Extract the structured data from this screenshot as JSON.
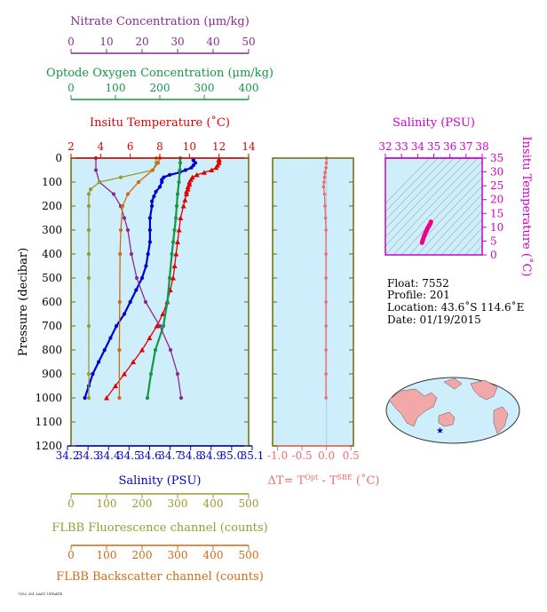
{
  "colors": {
    "nitrate": "#8b2a8b",
    "oxygen": "#119944",
    "temperature": "#e00000",
    "salinity": "#0000cc",
    "fluorescence": "#9a9a30",
    "backscatter": "#d06a10",
    "delta_t": "#f06a6a",
    "ts_axis": "#cc00cc",
    "ts_line": "#ee0088",
    "panel_bg": "#cdeefa",
    "axis_olive": "#6d6d00"
  },
  "top_axes": {
    "nitrate": {
      "label": "Nitrate Concentration (μm/kg)",
      "ticks": [
        "0",
        "10",
        "20",
        "30",
        "40",
        "50"
      ]
    },
    "oxygen": {
      "label": "Optode Oxygen Concentration (μm/kg)",
      "ticks": [
        "0",
        "100",
        "200",
        "300",
        "400"
      ]
    },
    "temperature": {
      "label": "Insitu Temperature (˚C)",
      "ticks": [
        "2",
        "4",
        "6",
        "8",
        "10",
        "12",
        "14"
      ]
    }
  },
  "bottom_axes": {
    "salinity": {
      "label": "Salinity (PSU)",
      "ticks": [
        "34.2",
        "34.3",
        "34.4",
        "34.5",
        "34.6",
        "34.7",
        "34.8",
        "34.9",
        "35.0",
        "35.1"
      ]
    },
    "fluorescence": {
      "label": "FLBB Fluorescence channel (counts)",
      "ticks": [
        "0",
        "100",
        "200",
        "300",
        "400",
        "500"
      ]
    },
    "backscatter": {
      "label": "FLBB Backscatter channel (counts)",
      "ticks": [
        "0",
        "100",
        "200",
        "300",
        "400",
        "500"
      ]
    }
  },
  "pressure_axis": {
    "label": "Pressure (decibar)",
    "ticks": [
      "0",
      "100",
      "200",
      "300",
      "400",
      "500",
      "600",
      "700",
      "800",
      "900",
      "1000",
      "1100",
      "1200"
    ]
  },
  "delta_t_axis": {
    "label_main": "ΔT= T",
    "label_sup1": "Opt",
    "label_mid": " - T",
    "label_sup2": "SBE",
    "label_end": " (˚C)",
    "ticks": [
      "-1.0",
      "-0.5",
      "0.0",
      "0.5"
    ]
  },
  "ts_diagram": {
    "title": "Salinity (PSU)",
    "ylabel": "Insitu Temperature (˚C)",
    "x_ticks": [
      "32",
      "33",
      "34",
      "35",
      "36",
      "37",
      "38"
    ],
    "y_ticks": [
      "0",
      "5",
      "10",
      "15",
      "20",
      "25",
      "30",
      "35"
    ]
  },
  "float_info": {
    "float": "Float:  7552",
    "profile": "Profile:  201",
    "location": "Location:  43.6˚S  114.6˚E",
    "date": "Date:  01/19/2015"
  },
  "footer_text": "7552 201 LAST UPDATE",
  "chart_data": [
    {
      "type": "line",
      "title": "",
      "ylabel": "Pressure (decibar)",
      "ylim": [
        1200,
        0
      ],
      "series": [
        {
          "name": "Insitu Temperature (˚C)",
          "xlim": [
            2,
            14
          ],
          "pressure": [
            5,
            10,
            20,
            30,
            40,
            50,
            60,
            70,
            80,
            90,
            100,
            110,
            120,
            130,
            140,
            150,
            175,
            200,
            250,
            300,
            350,
            400,
            450,
            500,
            550,
            600,
            650,
            700,
            750,
            800,
            850,
            900,
            950,
            1000
          ],
          "values": [
            12.0,
            12.0,
            12.0,
            11.9,
            11.8,
            11.5,
            11.0,
            10.5,
            10.2,
            10.1,
            10.0,
            10.0,
            9.9,
            9.9,
            9.8,
            9.8,
            9.7,
            9.6,
            9.4,
            9.3,
            9.2,
            9.1,
            9.0,
            8.9,
            8.7,
            8.5,
            8.2,
            7.8,
            7.3,
            6.8,
            6.2,
            5.6,
            5.0,
            4.4
          ]
        },
        {
          "name": "Salinity (PSU)",
          "xlim": [
            34.2,
            35.1
          ],
          "pressure": [
            5,
            10,
            20,
            30,
            40,
            50,
            60,
            70,
            80,
            90,
            100,
            120,
            140,
            160,
            180,
            200,
            250,
            300,
            350,
            400,
            450,
            500,
            550,
            600,
            650,
            700,
            750,
            800,
            850,
            900,
            950,
            1000
          ],
          "values": [
            34.82,
            34.82,
            34.83,
            34.82,
            34.81,
            34.78,
            34.75,
            34.7,
            34.67,
            34.66,
            34.66,
            34.65,
            34.63,
            34.62,
            34.61,
            34.61,
            34.6,
            34.6,
            34.6,
            34.59,
            34.58,
            34.56,
            34.53,
            34.5,
            34.47,
            34.43,
            34.4,
            34.37,
            34.34,
            34.31,
            34.29,
            34.27
          ]
        },
        {
          "name": "Optode Oxygen Concentration (μm/kg)",
          "xlim": [
            0,
            400
          ],
          "pressure": [
            0,
            20,
            50,
            100,
            150,
            200,
            250,
            300,
            350,
            400,
            500,
            600,
            700,
            800,
            900,
            1000
          ],
          "values": [
            246,
            246,
            245,
            243,
            240,
            238,
            236,
            233,
            230,
            227,
            222,
            217,
            208,
            190,
            180,
            172
          ]
        },
        {
          "name": "Nitrate Concentration (μm/kg)",
          "xlim": [
            0,
            50
          ],
          "pressure": [
            0,
            50,
            100,
            150,
            200,
            250,
            300,
            400,
            500,
            600,
            700,
            800,
            900,
            1000
          ],
          "values": [
            7.0,
            7.0,
            8.0,
            12.0,
            14.0,
            15.0,
            16.0,
            17.0,
            18.5,
            21.0,
            25.0,
            28.0,
            30.0,
            31.0
          ]
        },
        {
          "name": "FLBB Fluorescence channel (counts)",
          "xlim": [
            0,
            500
          ],
          "pressure": [
            0,
            20,
            50,
            80,
            100,
            130,
            150,
            200,
            300,
            400,
            500,
            700,
            900,
            1000
          ],
          "values": [
            240,
            240,
            230,
            140,
            80,
            55,
            50,
            50,
            50,
            50,
            50,
            50,
            50,
            50
          ]
        },
        {
          "name": "FLBB Backscatter channel (counts)",
          "xlim": [
            0,
            500
          ],
          "pressure": [
            0,
            20,
            50,
            100,
            150,
            200,
            300,
            400,
            600,
            800,
            1000
          ],
          "values": [
            250,
            245,
            230,
            190,
            160,
            145,
            140,
            138,
            137,
            136,
            136
          ]
        }
      ]
    },
    {
      "type": "line",
      "xlabel": "ΔT= TOpt - TSBE (˚C)",
      "xlim": [
        -1.1,
        0.55
      ],
      "ylim": [
        1200,
        0
      ],
      "pressure": [
        0,
        20,
        40,
        60,
        80,
        100,
        120,
        150,
        200,
        250,
        300,
        400,
        500,
        600,
        700,
        800,
        900,
        1000
      ],
      "values": [
        0.0,
        0.0,
        -0.01,
        -0.03,
        -0.04,
        -0.05,
        -0.06,
        -0.04,
        -0.03,
        -0.02,
        -0.01,
        -0.01,
        -0.01,
        -0.01,
        -0.01,
        -0.01,
        -0.01,
        -0.01
      ]
    },
    {
      "type": "scatter",
      "title": "Salinity (PSU)",
      "xlabel": "Salinity (PSU)",
      "ylabel": "Insitu Temperature (˚C)",
      "xlim": [
        32,
        38
      ],
      "ylim": [
        0,
        35
      ],
      "x": [
        34.82,
        34.8,
        34.75,
        34.7,
        34.66,
        34.62,
        34.6,
        34.58,
        34.55,
        34.5,
        34.45,
        34.4,
        34.35,
        34.3,
        34.27
      ],
      "y": [
        12.0,
        11.5,
        11.0,
        10.5,
        10.0,
        9.8,
        9.6,
        9.2,
        8.7,
        8.2,
        7.5,
        6.8,
        5.9,
        5.0,
        4.4
      ]
    }
  ]
}
